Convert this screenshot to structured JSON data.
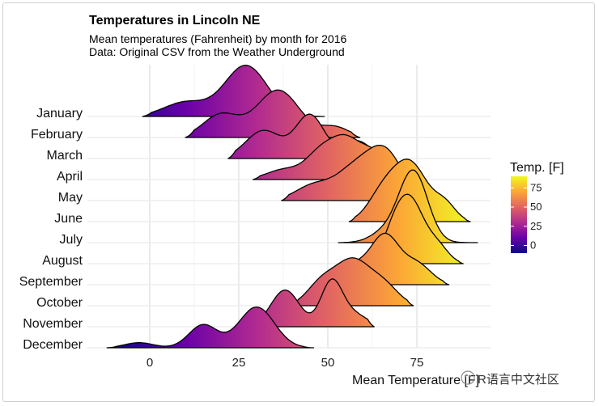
{
  "chart_data": {
    "type": "ridgeline",
    "title": "Temperatures in Lincoln NE",
    "subtitle_lines": [
      "Mean temperatures (Fahrenheit) by month for 2016",
      "Data: Original CSV from the Weather Underground"
    ],
    "xlabel": "Mean Temperature [F]",
    "ylabel": "",
    "xlim": [
      -17,
      97
    ],
    "x_ticks": [
      0,
      25,
      50,
      75
    ],
    "grid": true,
    "legend": {
      "title": "Temp. [F]",
      "position": "right",
      "ticks": [
        0,
        25,
        50,
        75
      ],
      "range": [
        -10,
        90
      ],
      "colors": [
        "#0d0887",
        "#6a00a8",
        "#b12a90",
        "#e16462",
        "#fca636",
        "#f0f921"
      ]
    },
    "series": [
      {
        "name": "January",
        "min": -2,
        "max": 49,
        "peaks": [
          {
            "x": 10,
            "h": 0.28,
            "w": 6
          },
          {
            "x": 27,
            "h": 1.0,
            "w": 6
          }
        ]
      },
      {
        "name": "February",
        "min": 10,
        "max": 59,
        "peaks": [
          {
            "x": 20,
            "h": 0.45,
            "w": 5
          },
          {
            "x": 36,
            "h": 0.93,
            "w": 6
          },
          {
            "x": 52,
            "h": 0.2,
            "w": 4
          }
        ]
      },
      {
        "name": "March",
        "min": 22,
        "max": 64,
        "peaks": [
          {
            "x": 32,
            "h": 0.55,
            "w": 5
          },
          {
            "x": 45,
            "h": 0.85,
            "w": 4
          },
          {
            "x": 58,
            "h": 0.35,
            "w": 4
          }
        ]
      },
      {
        "name": "April",
        "min": 29,
        "max": 70,
        "peaks": [
          {
            "x": 38,
            "h": 0.2,
            "w": 5
          },
          {
            "x": 48,
            "h": 0.5,
            "w": 4
          },
          {
            "x": 55,
            "h": 0.7,
            "w": 4
          },
          {
            "x": 63,
            "h": 0.5,
            "w": 4
          }
        ]
      },
      {
        "name": "May",
        "min": 37,
        "max": 79,
        "peaks": [
          {
            "x": 46,
            "h": 0.3,
            "w": 5
          },
          {
            "x": 57,
            "h": 0.55,
            "w": 5
          },
          {
            "x": 66,
            "h": 0.95,
            "w": 5
          }
        ]
      },
      {
        "name": "June",
        "min": 56,
        "max": 90,
        "peaks": [
          {
            "x": 65,
            "h": 0.45,
            "w": 4
          },
          {
            "x": 73,
            "h": 1.15,
            "w": 5
          },
          {
            "x": 83,
            "h": 0.3,
            "w": 3
          }
        ]
      },
      {
        "name": "July",
        "min": 53,
        "max": 92,
        "peaks": [
          {
            "x": 66,
            "h": 0.2,
            "w": 4
          },
          {
            "x": 74,
            "h": 1.4,
            "w": 4
          }
        ]
      },
      {
        "name": "August",
        "min": 61,
        "max": 88,
        "peaks": [
          {
            "x": 68,
            "h": 0.35,
            "w": 3
          },
          {
            "x": 73,
            "h": 1.25,
            "w": 4
          },
          {
            "x": 81,
            "h": 0.3,
            "w": 3
          }
        ]
      },
      {
        "name": "September",
        "min": 50,
        "max": 84,
        "peaks": [
          {
            "x": 57,
            "h": 0.35,
            "w": 4
          },
          {
            "x": 66,
            "h": 0.95,
            "w": 4
          },
          {
            "x": 75,
            "h": 0.4,
            "w": 4
          }
        ]
      },
      {
        "name": "October",
        "min": 40,
        "max": 74,
        "peaks": [
          {
            "x": 48,
            "h": 0.4,
            "w": 4
          },
          {
            "x": 57,
            "h": 0.88,
            "w": 5
          },
          {
            "x": 66,
            "h": 0.35,
            "w": 4
          }
        ]
      },
      {
        "name": "November",
        "min": 26,
        "max": 63,
        "peaks": [
          {
            "x": 38,
            "h": 0.72,
            "w": 4
          },
          {
            "x": 51,
            "h": 0.85,
            "w": 3
          },
          {
            "x": 57,
            "h": 0.25,
            "w": 4
          }
        ]
      },
      {
        "name": "December",
        "min": -12,
        "max": 46,
        "peaks": [
          {
            "x": -3,
            "h": 0.1,
            "w": 4
          },
          {
            "x": 15,
            "h": 0.45,
            "w": 4
          },
          {
            "x": 30,
            "h": 0.8,
            "w": 5
          }
        ]
      }
    ]
  },
  "watermark": "R语言中文社区"
}
